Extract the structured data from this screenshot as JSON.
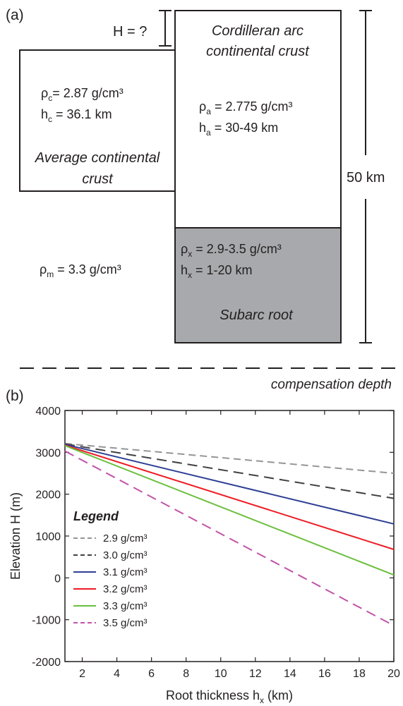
{
  "panel_a": {
    "panel_label": "(a)",
    "unknown_height": "H = ?",
    "arc": {
      "title_line1": "Cordilleran arc",
      "title_line2": "continental crust",
      "rho_sym": "ρ",
      "rho_sub": "a",
      "rho_value": " = 2.775 g/cm³",
      "h_sym": "h",
      "h_sub": "a",
      "h_value": " = 30-49 km"
    },
    "avg": {
      "rho_sym": "ρ",
      "rho_sub": "c",
      "rho_value": "= 2.87 g/cm³",
      "h_sym": "h",
      "h_sub": "c",
      "h_value": " = 36.1 km",
      "title_line1": "Average continental",
      "title_line2": "crust"
    },
    "mantle": {
      "rho_sym": "ρ",
      "rho_sub": "m",
      "rho_value": " = 3.3 g/cm³"
    },
    "root": {
      "rho_sym": "ρ",
      "rho_sub": "x",
      "rho_value": " = 2.9-3.5 g/cm³",
      "h_sym": "h",
      "h_sub": "x",
      "h_value": " = 1-20 km",
      "title": "Subarc root",
      "fill_color": "#a7a9ac"
    },
    "depth_scale": "50 km",
    "compensation_label": "compensation depth"
  },
  "panel_b": {
    "panel_label": "(b)",
    "legend_title": "Legend"
  },
  "chart_data": {
    "type": "line",
    "xlabel_main": "Root thickness h",
    "xlabel_sub": "x",
    "xlabel_unit": " (km)",
    "ylabel": "Elevation H (m)",
    "xlim": [
      1,
      20
    ],
    "ylim": [
      -2000,
      4000
    ],
    "xticks": [
      2,
      4,
      6,
      8,
      10,
      12,
      14,
      16,
      18,
      20
    ],
    "yticks": [
      -2000,
      -1000,
      0,
      1000,
      2000,
      3000,
      4000
    ],
    "grid": false,
    "legend_position": "left",
    "series": [
      {
        "name": "2.9 g/cm³",
        "color": "#939598",
        "dash": "10 6",
        "x": [
          1,
          20
        ],
        "y": [
          3210,
          2500
        ]
      },
      {
        "name": "3.0 g/cm³",
        "color": "#414042",
        "dash": "14 8",
        "x": [
          1,
          20
        ],
        "y": [
          3200,
          1900
        ]
      },
      {
        "name": "3.1 g/cm³",
        "color": "#2e3f94",
        "dash": "",
        "x": [
          1,
          20
        ],
        "y": [
          3190,
          1290
        ]
      },
      {
        "name": "3.2 g/cm³",
        "color": "#ed1c24",
        "dash": "",
        "x": [
          1,
          20
        ],
        "y": [
          3170,
          680
        ]
      },
      {
        "name": "3.3 g/cm³",
        "color": "#6cbf3f",
        "dash": "",
        "x": [
          1,
          20
        ],
        "y": [
          3160,
          70
        ]
      },
      {
        "name": "3.5 g/cm³",
        "color": "#c153a8",
        "dash": "14 8",
        "x": [
          1,
          20
        ],
        "y": [
          3030,
          -1140
        ]
      }
    ]
  }
}
